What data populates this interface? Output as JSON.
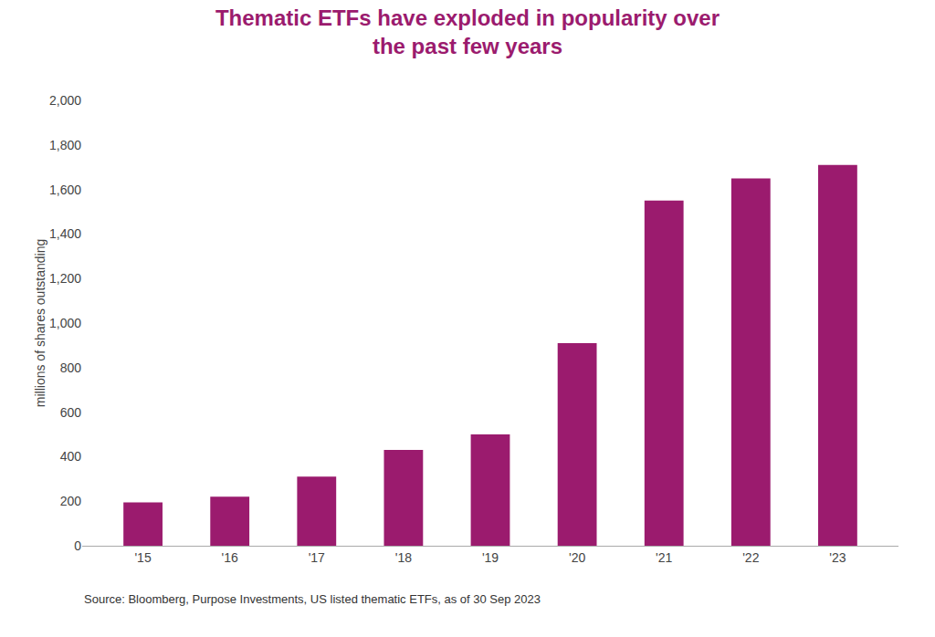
{
  "chart_data": {
    "type": "bar",
    "title": "Thematic ETFs have exploded in popularity over\nthe past few years",
    "ylabel": "millions of shares outstanding",
    "categories": [
      "'15",
      "'16",
      "'17",
      "'18",
      "'19",
      "'20",
      "'21",
      "'22",
      "'23"
    ],
    "values": [
      195,
      220,
      310,
      430,
      500,
      910,
      1550,
      1650,
      1710
    ],
    "color": "#9B1B6E",
    "ylim": [
      0,
      2000
    ],
    "yticks": [
      0,
      200,
      400,
      600,
      800,
      {
        "value": 1000,
        "label": "1,000"
      },
      {
        "value": 1200,
        "label": "1,200"
      },
      {
        "value": 1400,
        "label": "1,400"
      },
      {
        "value": 1600,
        "label": "1,600"
      },
      {
        "value": 1800,
        "label": "1,800"
      },
      {
        "value": 2000,
        "label": "2,000"
      }
    ],
    "annotations": [
      "Source: Bloomberg, Purpose Investments, US listed thematic ETFs, as of 30 Sep 2023"
    ],
    "grid": false
  }
}
